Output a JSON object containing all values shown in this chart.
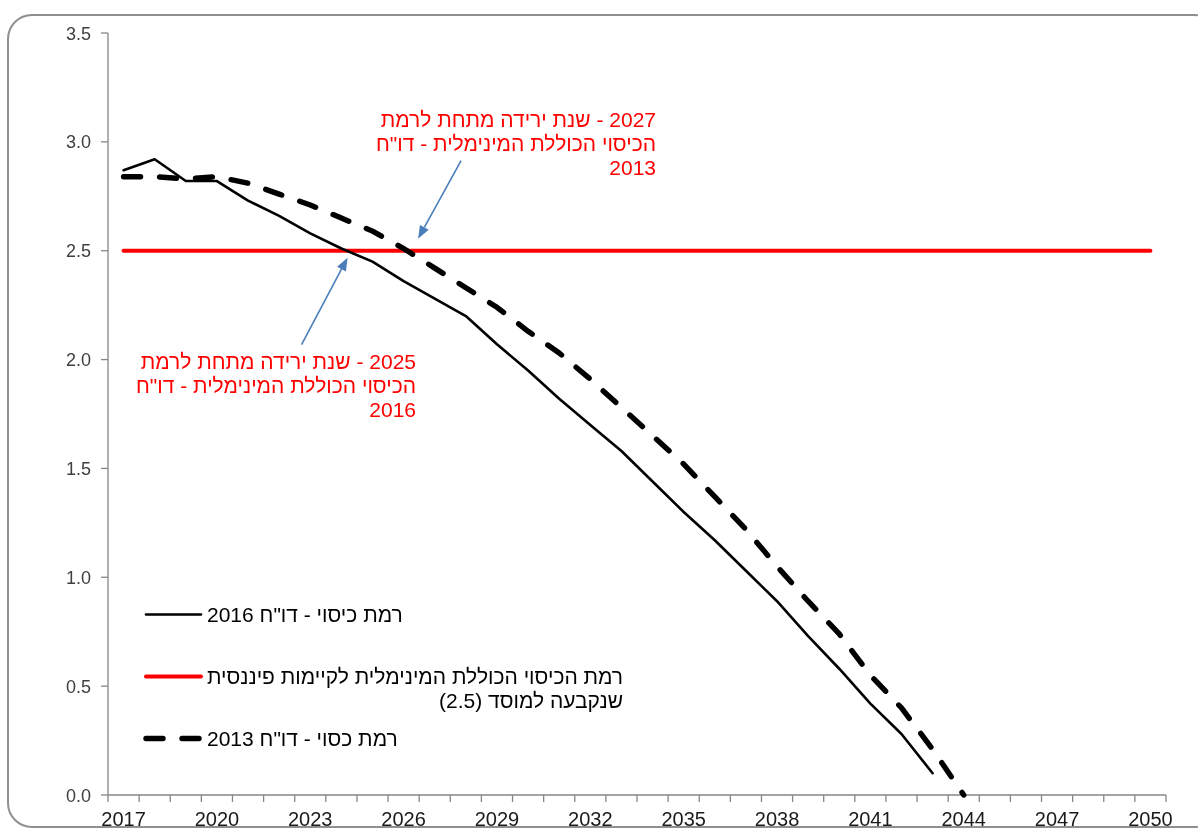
{
  "chart_data": {
    "type": "line",
    "categories": [
      "2017",
      null,
      null,
      "2020",
      null,
      null,
      "2023",
      null,
      null,
      "2026",
      null,
      null,
      "2029",
      null,
      null,
      "2032",
      null,
      null,
      "2035",
      null,
      null,
      "2038",
      null,
      null,
      "2041",
      null,
      null,
      "2044",
      null,
      null,
      "2047",
      null,
      null,
      "2050"
    ],
    "series": [
      {
        "name": "רמת כיסוי - דו\"ח 2016",
        "color": "#000000",
        "values": [
          2.87,
          2.92,
          2.82,
          2.82,
          2.73,
          2.66,
          2.58,
          2.51,
          2.45,
          2.36,
          2.28,
          2.2,
          2.07,
          1.95,
          1.82,
          1.7,
          1.58,
          1.44,
          1.3,
          1.17,
          1.03,
          0.89,
          0.73,
          0.58,
          0.42,
          0.28,
          0.1,
          null,
          null,
          null,
          null,
          null,
          null,
          null
        ]
      },
      {
        "name": "רמת הכיסוי הכוללת המינימלית לקיימות פיננסית שנקבעה למוסד (2.5)",
        "color": "#ff0000",
        "values": [
          2.5,
          2.5,
          2.5,
          2.5,
          2.5,
          2.5,
          2.5,
          2.5,
          2.5,
          2.5,
          2.5,
          2.5,
          2.5,
          2.5,
          2.5,
          2.5,
          2.5,
          2.5,
          2.5,
          2.5,
          2.5,
          2.5,
          2.5,
          2.5,
          2.5,
          2.5,
          2.5,
          2.5,
          2.5,
          2.5,
          2.5,
          2.5,
          2.5,
          2.5
        ]
      },
      {
        "name": "רמת כסוי - דו\"ח 2013",
        "color": "#000000",
        "line_style": "dashed",
        "values": [
          2.84,
          2.84,
          2.83,
          2.84,
          2.81,
          2.76,
          2.71,
          2.65,
          2.59,
          2.51,
          2.42,
          2.33,
          2.24,
          2.13,
          2.03,
          1.91,
          1.78,
          1.65,
          1.52,
          1.37,
          1.22,
          1.05,
          0.89,
          0.74,
          0.55,
          0.4,
          0.21,
          0.0,
          null,
          null,
          null,
          null,
          null,
          null
        ]
      }
    ],
    "ylim": [
      0,
      3.5
    ],
    "yticks": [
      {
        "value": 0,
        "label": "0.0"
      },
      0.5,
      {
        "value": 1,
        "label": "1.0"
      },
      1.5,
      {
        "value": 2,
        "label": "2.0"
      },
      2.5,
      {
        "value": 3,
        "label": "3.0"
      },
      3.5
    ],
    "line_style": "solid",
    "legend": "bottom left",
    "annotations": [
      "2027 - שנת ירידה מתחת לרמת הכיסוי הכוללת המינימלית - דו\"ח 2013",
      "2025 - שנת ירידה מתחת לרמת הכיסוי הכוללת המינימלית - דו\"ח 2016"
    ]
  }
}
